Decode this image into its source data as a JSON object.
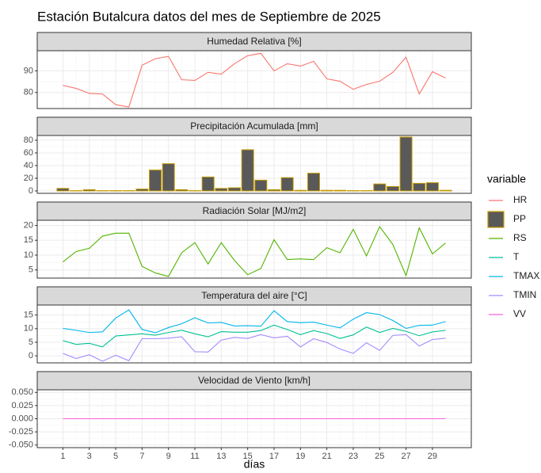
{
  "title": "Estación Butalcura datos del mes de Septiembre de 2025",
  "x_label": "días",
  "legend_title": "variable",
  "chart_data": [
    {
      "type": "line",
      "title": "Humedad Relativa [%]",
      "x": [
        1,
        2,
        3,
        4,
        5,
        6,
        7,
        8,
        9,
        10,
        11,
        12,
        13,
        14,
        15,
        16,
        17,
        18,
        19,
        20,
        21,
        22,
        23,
        24,
        25,
        26,
        27,
        28,
        29,
        30
      ],
      "xlim": [
        -0.945,
        31.945
      ],
      "xticks": [
        1,
        3,
        5,
        7,
        9,
        11,
        13,
        15,
        17,
        19,
        21,
        23,
        25,
        27,
        29
      ],
      "ylim": [
        72.6,
        99.3
      ],
      "yticks": [
        80,
        90
      ],
      "series": [
        {
          "name": "HR",
          "color": "#F8766D",
          "values": [
            83.3,
            81.9,
            79.6,
            79.3,
            74.4,
            73.3,
            92.6,
            95.6,
            96.7,
            85.9,
            85.6,
            89.3,
            88.5,
            93.3,
            97,
            98.1,
            90,
            93.3,
            92.2,
            94.4,
            86.3,
            85.2,
            81.5,
            83.7,
            85.2,
            89.3,
            96.3,
            79.3,
            89.6,
            86.7
          ]
        }
      ]
    },
    {
      "type": "bar",
      "title": "Precipitación Acumulada [mm]",
      "x": [
        1,
        2,
        3,
        4,
        5,
        6,
        7,
        8,
        9,
        10,
        11,
        12,
        13,
        14,
        15,
        16,
        17,
        18,
        19,
        20,
        21,
        22,
        23,
        24,
        25,
        26,
        27,
        28,
        29,
        30
      ],
      "xlim": [
        -0.945,
        31.945
      ],
      "xticks": [
        1,
        3,
        5,
        7,
        9,
        11,
        13,
        15,
        17,
        19,
        21,
        23,
        25,
        27,
        29
      ],
      "ylim": [
        -3.75,
        87.5
      ],
      "yticks": [
        0,
        20,
        40,
        60,
        80
      ],
      "series": [
        {
          "name": "PP",
          "color": "#C49A00",
          "fill": "#595959",
          "values": [
            4,
            0.5,
            2,
            0.5,
            0.5,
            0.5,
            3,
            33,
            43,
            2,
            0.5,
            22,
            4,
            5,
            65,
            17,
            2,
            21,
            1,
            28,
            1,
            1,
            0.5,
            0.5,
            11,
            7,
            85,
            12,
            13,
            1
          ]
        }
      ]
    },
    {
      "type": "line",
      "title": "Radiación Solar [MJ/m2]",
      "x": [
        1,
        2,
        3,
        4,
        5,
        6,
        7,
        8,
        9,
        10,
        11,
        12,
        13,
        14,
        15,
        16,
        17,
        18,
        19,
        20,
        21,
        22,
        23,
        24,
        25,
        26,
        27,
        28,
        29,
        30
      ],
      "xlim": [
        -0.945,
        31.945
      ],
      "xticks": [
        1,
        3,
        5,
        7,
        9,
        11,
        13,
        15,
        17,
        19,
        21,
        23,
        25,
        27,
        29
      ],
      "ylim": [
        2.25,
        21.75
      ],
      "yticks": [
        5,
        10,
        15,
        20
      ],
      "series": [
        {
          "name": "RS",
          "color": "#53B400",
          "values": [
            7.7,
            11.2,
            12.3,
            16.4,
            17.4,
            17.4,
            6.2,
            4.0,
            2.8,
            10.8,
            14.2,
            7.0,
            14.2,
            8.2,
            3.4,
            5.5,
            15.2,
            8.5,
            8.7,
            8.5,
            12.5,
            10.8,
            18.7,
            9.7,
            19.6,
            13.6,
            3.1,
            19.2,
            10.4,
            14.1
          ]
        }
      ]
    },
    {
      "type": "line",
      "title": "Temperatura del aire [°C]",
      "x": [
        1,
        2,
        3,
        4,
        5,
        6,
        7,
        8,
        9,
        10,
        11,
        12,
        13,
        14,
        15,
        16,
        17,
        18,
        19,
        20,
        21,
        22,
        23,
        24,
        25,
        26,
        27,
        28,
        29,
        30
      ],
      "xlim": [
        -0.945,
        31.945
      ],
      "xticks": [
        1,
        3,
        5,
        7,
        9,
        11,
        13,
        15,
        17,
        19,
        21,
        23,
        25,
        27,
        29
      ],
      "ylim": [
        -2.6,
        18.7
      ],
      "yticks": [
        0,
        5,
        10,
        15
      ],
      "series": [
        {
          "name": "T",
          "color": "#00C094",
          "values": [
            5.6,
            4.2,
            4.6,
            3.3,
            7.3,
            7.7,
            8.1,
            7.6,
            8.6,
            9.4,
            8.1,
            7.0,
            8.9,
            8.7,
            8.7,
            9.3,
            11.3,
            9.7,
            7.8,
            9.3,
            8.2,
            6.4,
            7.7,
            10.6,
            8.6,
            10.1,
            9.0,
            7.4,
            8.8,
            9.4
          ]
        },
        {
          "name": "TMAX",
          "color": "#00B6EB",
          "values": [
            10.1,
            9.4,
            8.6,
            8.8,
            13.9,
            16.9,
            9.7,
            8.5,
            10.4,
            11.8,
            14.0,
            12.1,
            12.3,
            11.0,
            11.1,
            10.9,
            16.6,
            12.6,
            12.2,
            12.4,
            11.3,
            10.3,
            13.5,
            15.9,
            15.2,
            13.0,
            10.1,
            11.2,
            11.3,
            12.6
          ]
        },
        {
          "name": "TMIN",
          "color": "#A58AFF",
          "values": [
            0.9,
            -1.0,
            0.4,
            -2.0,
            0.2,
            -1.8,
            6.3,
            6.3,
            6.5,
            7.0,
            1.5,
            1.4,
            5.8,
            6.8,
            6.4,
            7.8,
            6.6,
            7.2,
            3.3,
            6.3,
            4.9,
            2.5,
            0.9,
            4.8,
            2.0,
            7.5,
            7.8,
            3.6,
            6.0,
            6.5
          ]
        }
      ]
    },
    {
      "type": "line",
      "title": "Velocidad de Viento [km/h]",
      "x": [
        1,
        2,
        3,
        4,
        5,
        6,
        7,
        8,
        9,
        10,
        11,
        12,
        13,
        14,
        15,
        16,
        17,
        18,
        19,
        20,
        21,
        22,
        23,
        24,
        25,
        26,
        27,
        28,
        29,
        30
      ],
      "xlim": [
        -0.945,
        31.945
      ],
      "xticks": [
        1,
        3,
        5,
        7,
        9,
        11,
        13,
        15,
        17,
        19,
        21,
        23,
        25,
        27,
        29
      ],
      "ylim": [
        -0.055,
        0.055
      ],
      "yticks": [
        {
          "value": -0.05,
          "label": "-0.050"
        },
        {
          "value": -0.025,
          "label": "-0.025"
        },
        {
          "value": 0,
          "label": "0.000"
        },
        {
          "value": 0.025,
          "label": "0.025"
        },
        {
          "value": 0.05,
          "label": "0.050"
        }
      ],
      "series": [
        {
          "name": "VV",
          "color": "#FB61D7",
          "values": [
            0,
            0,
            0,
            0,
            0,
            0,
            0,
            0,
            0,
            0,
            0,
            0,
            0,
            0,
            0,
            0,
            0,
            0,
            0,
            0,
            0,
            0,
            0,
            0,
            0,
            0,
            0,
            0,
            0,
            0
          ]
        }
      ]
    }
  ]
}
